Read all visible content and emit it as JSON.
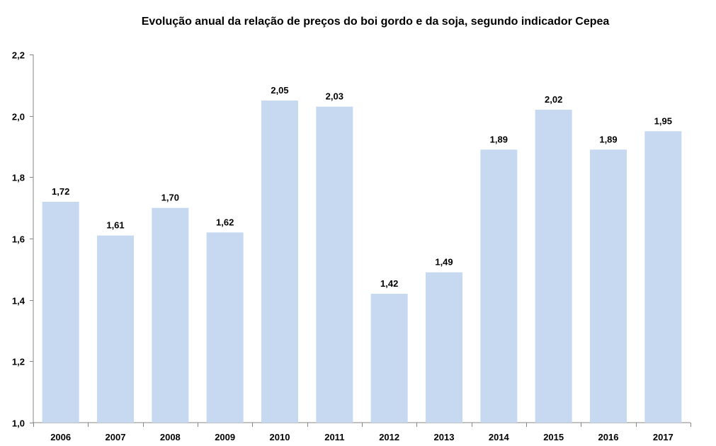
{
  "chart_data": {
    "type": "bar",
    "title": "Evolução anual da relação de preços do boi gordo e da soja, segundo indicador Cepea",
    "xlabel": "",
    "ylabel": "",
    "categories": [
      "2006",
      "2007",
      "2008",
      "2009",
      "2010",
      "2011",
      "2012",
      "2013",
      "2014",
      "2015",
      "2016",
      "2017"
    ],
    "values": [
      1.72,
      1.61,
      1.7,
      1.62,
      2.05,
      2.03,
      1.42,
      1.49,
      1.89,
      2.02,
      1.89,
      1.95
    ],
    "data_labels": [
      "1,72",
      "1,61",
      "1,70",
      "1,62",
      "2,05",
      "2,03",
      "1,42",
      "1,49",
      "1,89",
      "2,02",
      "1,89",
      "1,95"
    ],
    "ylim": [
      1.0,
      2.2
    ],
    "yticks": [
      1.0,
      1.2,
      1.4,
      1.6,
      1.8,
      2.0,
      2.2
    ],
    "ytick_labels": [
      "1,0",
      "1,2",
      "1,4",
      "1,6",
      "1,8",
      "2,0",
      "2,2"
    ],
    "grid": false,
    "legend": "none",
    "bar_color": "#c6d9f1",
    "axis_color": "#868686"
  }
}
